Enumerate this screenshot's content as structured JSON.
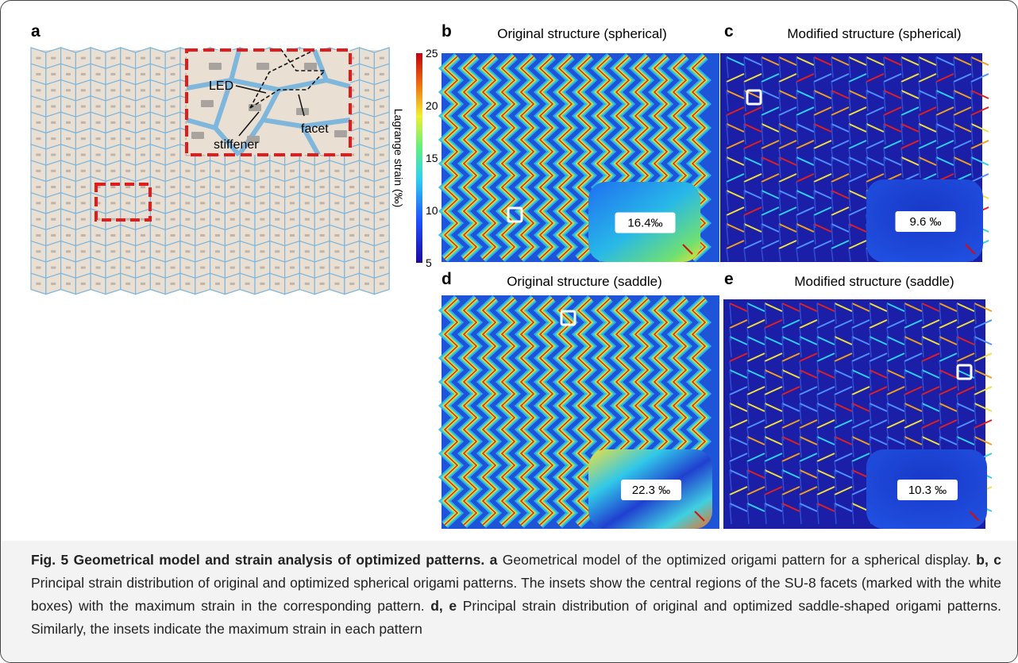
{
  "panels": [
    {
      "label": "a",
      "annotations": [
        "LED",
        "facet",
        "stiffener"
      ]
    },
    {
      "label": "b",
      "title": "Original structure (spherical)",
      "inset_value": "16.4‰"
    },
    {
      "label": "c",
      "title": "Modified structure (spherical)",
      "inset_value": "9.6 ‰"
    },
    {
      "label": "d",
      "title": "Original structure (saddle)",
      "inset_value": "22.3 ‰"
    },
    {
      "label": "e",
      "title": "Modified structure (saddle)",
      "inset_value": "10.3 ‰"
    }
  ],
  "colorbar": {
    "label": "Lagrange strain (‰)",
    "ticks": [
      25,
      20,
      15,
      10,
      5
    ]
  },
  "caption": {
    "title": "Fig. 5 Geometrical model and strain analysis of optimized patterns.",
    "items": [
      {
        "label": "a",
        "text": "Geometrical model of the optimized origami pattern for a spherical display."
      },
      {
        "label": "b, c",
        "text": "Principal strain distribution of original and optimized spherical origami patterns. The insets show the central regions of the SU-8 facets (marked with the white boxes) with the maximum strain in the corresponding pattern."
      },
      {
        "label": "d, e",
        "text": "Principal strain distribution of original and optimized saddle-shaped origami patterns. Similarly, the insets indicate the maximum strain in each pattern"
      }
    ]
  }
}
